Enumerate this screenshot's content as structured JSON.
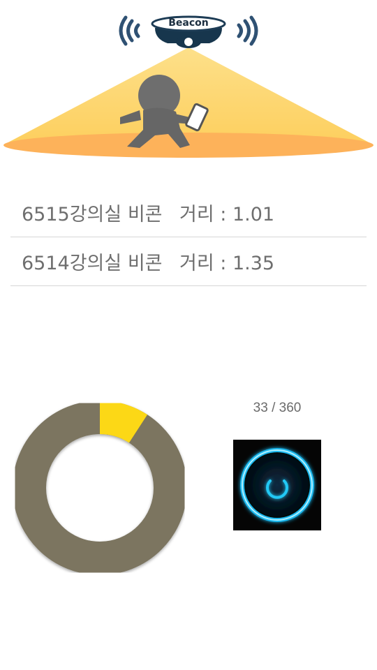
{
  "hero": {
    "beacon_label": "Beacon"
  },
  "beacons": [
    {
      "name": "6515강의실 비콘",
      "distance": "거리 : 1.01"
    },
    {
      "name": "6514강의실 비콘",
      "distance": "거리 : 1.35"
    }
  ],
  "progress": {
    "current": 33,
    "total": 360,
    "text": "33 / 360"
  },
  "colors": {
    "ring_track": "#7b7460",
    "ring_fill": "#fcd815",
    "light_cone": "#fdd76a",
    "floor_glow": "#fdb45c",
    "power_glow": "#22c8f5"
  },
  "icons": {
    "beacon": "beacon-icon",
    "person": "person-with-phone-icon",
    "power": "power-icon"
  }
}
